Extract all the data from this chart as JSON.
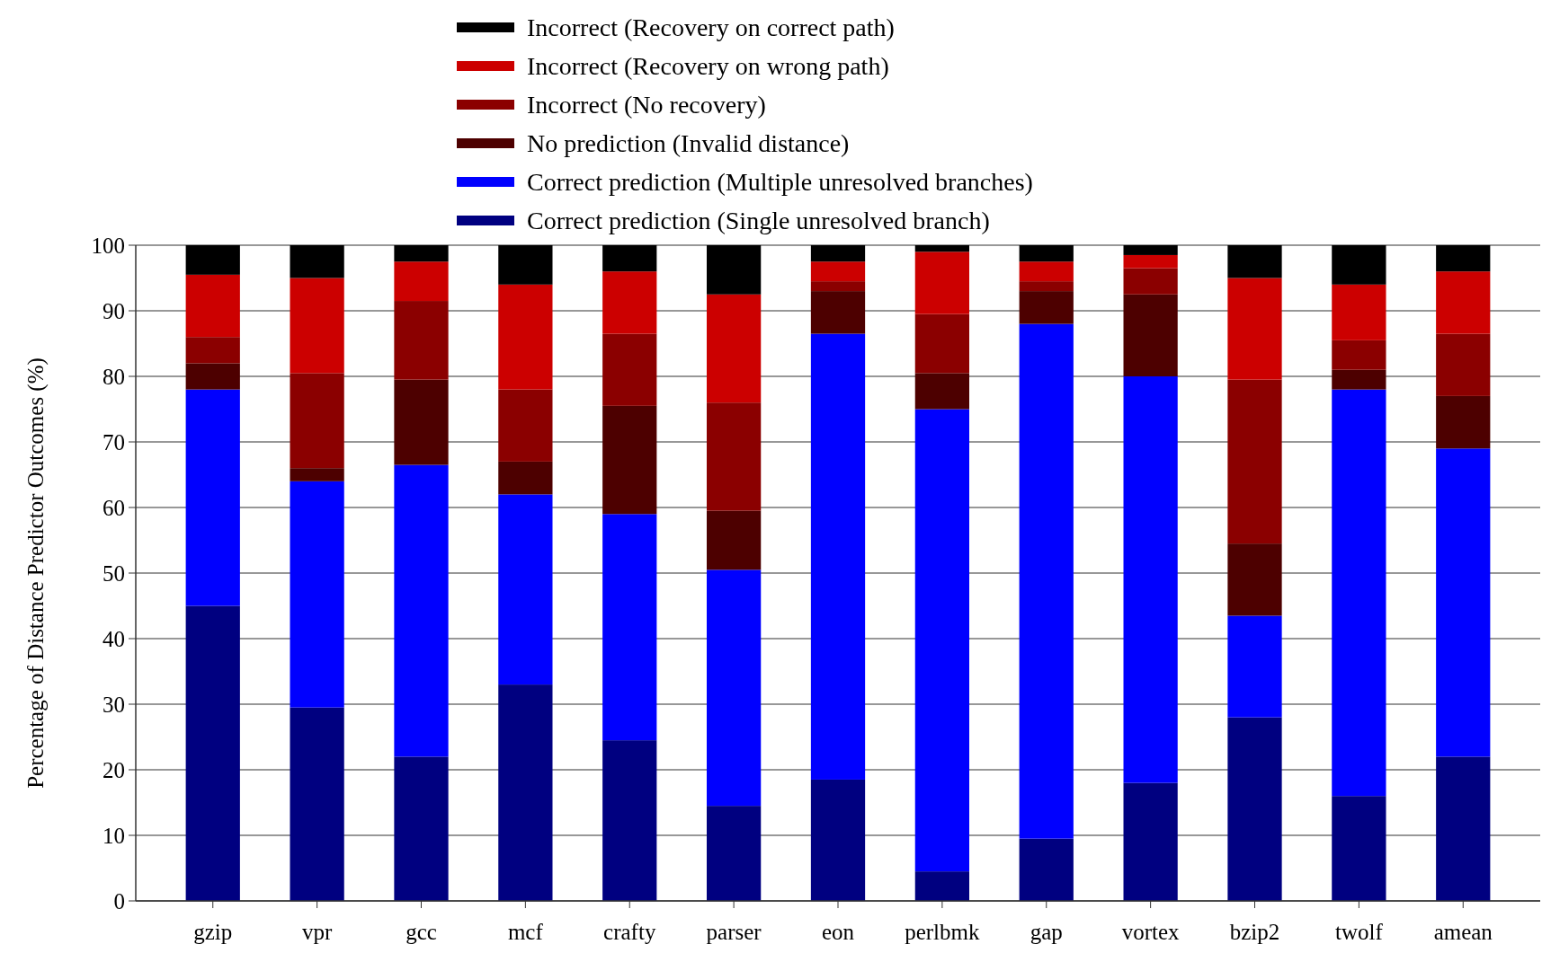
{
  "chart_data": {
    "type": "bar",
    "stacked": true,
    "ylabel": "Percentage of Distance Predictor Outcomes (%)",
    "categories": [
      "gzip",
      "vpr",
      "gcc",
      "mcf",
      "crafty",
      "parser",
      "eon",
      "perlbmk",
      "gap",
      "vortex",
      "bzip2",
      "twolf",
      "amean"
    ],
    "ylim": [
      0,
      100
    ],
    "yticks": [
      0,
      10,
      20,
      30,
      40,
      50,
      60,
      70,
      80,
      90,
      100
    ],
    "grid": "y",
    "legend": "top",
    "series": [
      {
        "name": "Correct prediction (Single unresolved branch)",
        "color": "#000080",
        "values": [
          45,
          29.5,
          22,
          33,
          24.5,
          14.5,
          18.5,
          4.5,
          9.5,
          18,
          28,
          16,
          22
        ]
      },
      {
        "name": "Correct prediction (Multiple unresolved branches)",
        "color": "#0000ff",
        "values": [
          33,
          34.5,
          44.5,
          29,
          34.5,
          36,
          68,
          70.5,
          78.5,
          62,
          15.5,
          62,
          47
        ]
      },
      {
        "name": "No prediction (Invalid distance)",
        "color": "#4d0000",
        "values": [
          4,
          2,
          13,
          5,
          16.5,
          9,
          6.5,
          5.5,
          5,
          12.5,
          11,
          3,
          8
        ]
      },
      {
        "name": "Incorrect (No recovery)",
        "color": "#8b0000",
        "values": [
          4,
          14.5,
          12,
          11,
          11,
          16.5,
          1.5,
          9,
          1.5,
          4,
          25,
          4.5,
          9.5
        ]
      },
      {
        "name": "Incorrect (Recovery on wrong path)",
        "color": "#cc0000",
        "values": [
          9.5,
          14.5,
          6,
          16,
          9.5,
          16.5,
          3,
          9.5,
          3,
          2,
          15.5,
          8.5,
          9.5
        ]
      },
      {
        "name": "Incorrect (Recovery on correct path)",
        "color": "#000000",
        "values": [
          4.5,
          5,
          2.5,
          6,
          4,
          7.5,
          2.5,
          1,
          2.5,
          1.5,
          5,
          6,
          4
        ]
      }
    ]
  }
}
